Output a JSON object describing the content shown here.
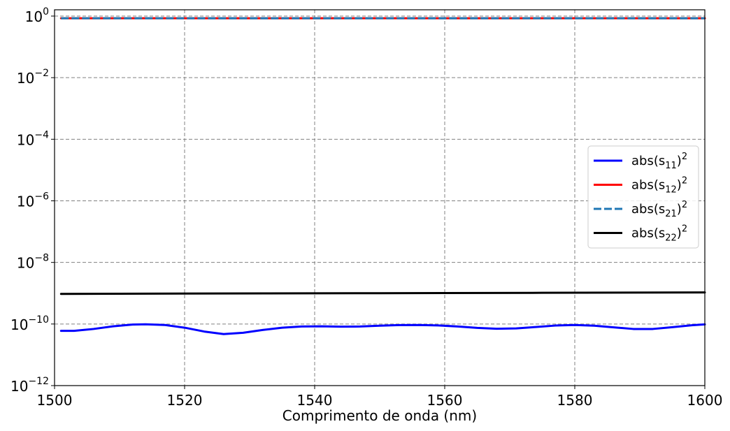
{
  "chart_data": {
    "type": "line",
    "title": "",
    "xlabel": "Comprimento de onda (nm)",
    "ylabel": "",
    "xlim": [
      1500,
      1600
    ],
    "ylim": [
      1e-12,
      1.6
    ],
    "yscale": "log",
    "grid": true,
    "legend_position": "center-right",
    "x_ticks": [
      1500,
      1520,
      1540,
      1560,
      1580,
      1600
    ],
    "x_tick_labels": [
      "1500",
      "1520",
      "1540",
      "1560",
      "1580",
      "1600"
    ],
    "y_ticks": [
      1e-12,
      1e-10,
      1e-08,
      1e-06,
      0.0001,
      0.01,
      1
    ],
    "y_tick_labels": [
      {
        "base": "10",
        "exp": "−12"
      },
      {
        "base": "10",
        "exp": "−10"
      },
      {
        "base": "10",
        "exp": "−8"
      },
      {
        "base": "10",
        "exp": "−6"
      },
      {
        "base": "10",
        "exp": "−4"
      },
      {
        "base": "10",
        "exp": "−2"
      },
      {
        "base": "10",
        "exp": "0"
      }
    ],
    "series": [
      {
        "name": "abs(s11)^2",
        "label": {
          "pre": "abs(s",
          "sub": "11",
          "post": ")",
          "sup": "2"
        },
        "color": "#0000ff",
        "style": "solid",
        "x": [
          1501,
          1503,
          1506,
          1509,
          1512,
          1514,
          1517,
          1520,
          1523,
          1526,
          1529,
          1532,
          1535,
          1538,
          1541,
          1544,
          1547,
          1550,
          1553,
          1556,
          1559,
          1562,
          1565,
          1568,
          1571,
          1574,
          1577,
          1580,
          1583,
          1586,
          1589,
          1592,
          1595,
          1598,
          1600
        ],
        "y": [
          6e-11,
          6e-11,
          6.9e-11,
          8.4e-11,
          9.6e-11,
          9.8e-11,
          9.3e-11,
          7.6e-11,
          5.7e-11,
          4.7e-11,
          5.2e-11,
          6.4e-11,
          7.6e-11,
          8.3e-11,
          8.4e-11,
          8.2e-11,
          8.3e-11,
          8.8e-11,
          9.2e-11,
          9.3e-11,
          9e-11,
          8.3e-11,
          7.5e-11,
          7e-11,
          7.2e-11,
          8e-11,
          8.9e-11,
          9.3e-11,
          8.8e-11,
          7.8e-11,
          6.9e-11,
          6.9e-11,
          7.9e-11,
          9.1e-11,
          9.7e-11
        ]
      },
      {
        "name": "abs(s12)^2",
        "label": {
          "pre": "abs(s",
          "sub": "12",
          "post": ")",
          "sup": "2"
        },
        "color": "#ff0000",
        "style": "solid",
        "x": [
          1501,
          1600
        ],
        "y": [
          0.85,
          0.85
        ]
      },
      {
        "name": "abs(s21)^2",
        "label": {
          "pre": "abs(s",
          "sub": "21",
          "post": ")",
          "sup": "2"
        },
        "color": "#1f77b4",
        "style": "dashed",
        "x": [
          1501,
          1600
        ],
        "y": [
          0.85,
          0.85
        ]
      },
      {
        "name": "abs(s22)^2",
        "label": {
          "pre": "abs(s",
          "sub": "22",
          "post": ")",
          "sup": "2"
        },
        "color": "#000000",
        "style": "solid",
        "x": [
          1501,
          1525,
          1550,
          1575,
          1600
        ],
        "y": [
          9.5e-10,
          9.8e-10,
          1e-09,
          1.03e-09,
          1.06e-09
        ]
      }
    ]
  }
}
